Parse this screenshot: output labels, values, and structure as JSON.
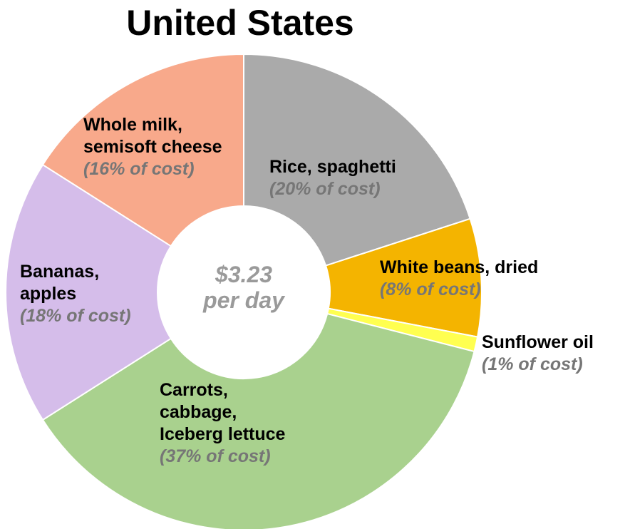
{
  "chart_data": {
    "type": "donut",
    "title": "United States",
    "center_label": "$3.23\nper day",
    "categories": [
      "Rice, spaghetti",
      "White beans, dried",
      "Sunflower oil",
      "Carrots,\ncabbage,\nIceberg lettuce",
      "Bananas,\napples",
      "Whole milk,\nsemisoft cheese"
    ],
    "values": [
      20,
      8,
      1,
      37,
      18,
      16
    ],
    "value_labels": [
      "(20% of cost)",
      "(8% of cost)",
      "(1% of cost)",
      "(37% of cost)",
      "(18% of cost)",
      "(16% of cost)"
    ],
    "colors": [
      "#aaaaaa",
      "#f4b400",
      "#ffff50",
      "#a9d18e",
      "#d5bdea",
      "#f8a98b"
    ]
  }
}
